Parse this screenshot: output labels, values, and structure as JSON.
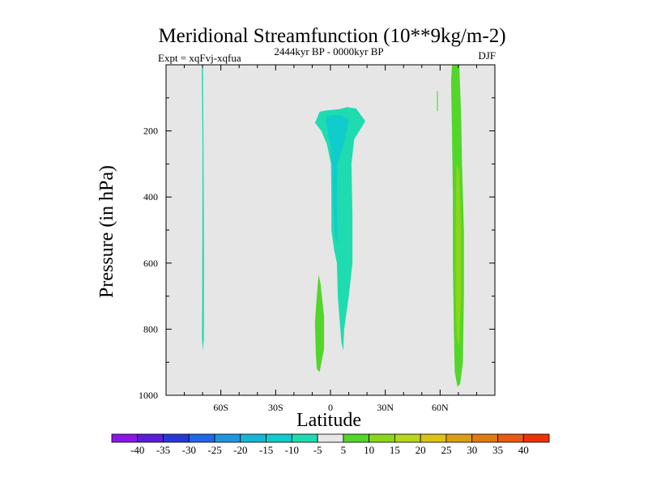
{
  "chart_data": {
    "type": "filled-contour",
    "title": "Meridional Streamfunction (10**9kg/m-2)",
    "subtitle_left": "Expt = xqFvj-xqfua",
    "subtitle_center": "2444kyr BP - 0000kyr BP",
    "subtitle_right": "DJF",
    "xlabel": "Latitude",
    "ylabel": "Pressure (in hPa)",
    "xlim": [
      -90,
      90
    ],
    "ylim": [
      1000,
      0
    ],
    "x_ticks": [
      {
        "value": -60,
        "label": "60S"
      },
      {
        "value": -30,
        "label": "30S"
      },
      {
        "value": 0,
        "label": "0"
      },
      {
        "value": 30,
        "label": "30N"
      },
      {
        "value": 60,
        "label": "60N"
      }
    ],
    "y_ticks": [
      {
        "value": 200,
        "label": "200"
      },
      {
        "value": 400,
        "label": "400"
      },
      {
        "value": 600,
        "label": "600"
      },
      {
        "value": 800,
        "label": "800"
      },
      {
        "value": 1000,
        "label": "1000"
      }
    ],
    "background_color": "#e6e6e6",
    "colorbar": {
      "labels": [
        "-40",
        "-35",
        "-30",
        "-25",
        "-20",
        "-15",
        "-10",
        "-5",
        "5",
        "10",
        "15",
        "20",
        "25",
        "30",
        "35",
        "40"
      ],
      "colors": [
        "#8c16e8",
        "#5a1ed6",
        "#2838d8",
        "#2068e8",
        "#1f95e2",
        "#16b6d8",
        "#10cccc",
        "#1edcb0",
        "#e6e6e6",
        "#52d62a",
        "#8cd619",
        "#b8d61a",
        "#dcc217",
        "#dc9e14",
        "#e07a12",
        "#e85a10",
        "#ee3208"
      ]
    },
    "features": [
      {
        "name": "thin-negative-filament-60S",
        "range": "-10 to -5",
        "color": "#1edcb0",
        "points": [
          [
            -70.5,
            10
          ],
          [
            -69.8,
            10
          ],
          [
            -69.5,
            220
          ],
          [
            -69.2,
            600
          ],
          [
            -69.3,
            830
          ],
          [
            -69.8,
            865
          ],
          [
            -70.3,
            830
          ],
          [
            -70.2,
            600
          ],
          [
            -70.1,
            220
          ]
        ]
      },
      {
        "name": "tropical-negative-cell",
        "range": "-10 to -5",
        "color": "#1edcb0",
        "points": [
          [
            -8,
            170
          ],
          [
            -6,
            142
          ],
          [
            -2,
            138
          ],
          [
            5,
            134
          ],
          [
            9,
            128
          ],
          [
            14,
            132
          ],
          [
            19,
            170
          ],
          [
            17,
            190
          ],
          [
            13,
            225
          ],
          [
            11.5,
            300
          ],
          [
            12,
            450
          ],
          [
            12,
            600
          ],
          [
            10,
            700
          ],
          [
            7.5,
            800
          ],
          [
            7,
            865
          ],
          [
            6,
            840
          ],
          [
            4,
            700
          ],
          [
            3.5,
            600
          ],
          [
            2,
            560
          ],
          [
            0.5,
            500
          ],
          [
            0.5,
            400
          ],
          [
            0.3,
            300
          ],
          [
            -2,
            240
          ],
          [
            -5,
            200
          ],
          [
            -8.5,
            175
          ]
        ]
      },
      {
        "name": "tropical-negative-core",
        "range": "-15 to -10",
        "color": "#10cccc",
        "points": [
          [
            -2,
            155
          ],
          [
            5,
            150
          ],
          [
            10,
            165
          ],
          [
            8,
            225
          ],
          [
            5.5,
            270
          ],
          [
            4,
            300
          ],
          [
            3.5,
            400
          ],
          [
            4,
            540
          ],
          [
            2.5,
            520
          ],
          [
            1.5,
            430
          ],
          [
            1,
            320
          ],
          [
            0,
            240
          ],
          [
            -2.5,
            175
          ]
        ]
      },
      {
        "name": "low-level-positive-cell",
        "range": "5 to 10",
        "color": "#52d62a",
        "points": [
          [
            -6.5,
            635
          ],
          [
            -5.5,
            660
          ],
          [
            -3.5,
            760
          ],
          [
            -3.5,
            860
          ],
          [
            -6,
            930
          ],
          [
            -7.5,
            920
          ],
          [
            -8,
            880
          ],
          [
            -8.5,
            780
          ],
          [
            -7.5,
            700
          ]
        ]
      },
      {
        "name": "small-positive-speck",
        "range": "5 to 10",
        "color": "#52d62a",
        "points": [
          [
            58.3,
            80
          ],
          [
            58.8,
            80
          ],
          [
            58.8,
            140
          ],
          [
            58.3,
            140
          ]
        ]
      },
      {
        "name": "northern-positive-band",
        "range": "5 to 10",
        "color": "#52d62a",
        "points": [
          [
            66.5,
            0
          ],
          [
            70.5,
            0
          ],
          [
            71.5,
            150
          ],
          [
            72,
            300
          ],
          [
            73,
            500
          ],
          [
            73,
            700
          ],
          [
            72.5,
            900
          ],
          [
            71,
            965
          ],
          [
            69.5,
            975
          ],
          [
            68,
            930
          ],
          [
            67.5,
            800
          ],
          [
            67,
            600
          ],
          [
            67,
            400
          ],
          [
            66.5,
            200
          ],
          [
            66,
            50
          ]
        ]
      },
      {
        "name": "northern-positive-core",
        "range": "10 to 15",
        "color": "#8cd619",
        "points": [
          [
            69,
            300
          ],
          [
            70.5,
            320
          ],
          [
            71.5,
            500
          ],
          [
            71.5,
            700
          ],
          [
            70.5,
            850
          ],
          [
            69.2,
            830
          ],
          [
            68.5,
            700
          ],
          [
            68.5,
            500
          ]
        ]
      }
    ]
  }
}
